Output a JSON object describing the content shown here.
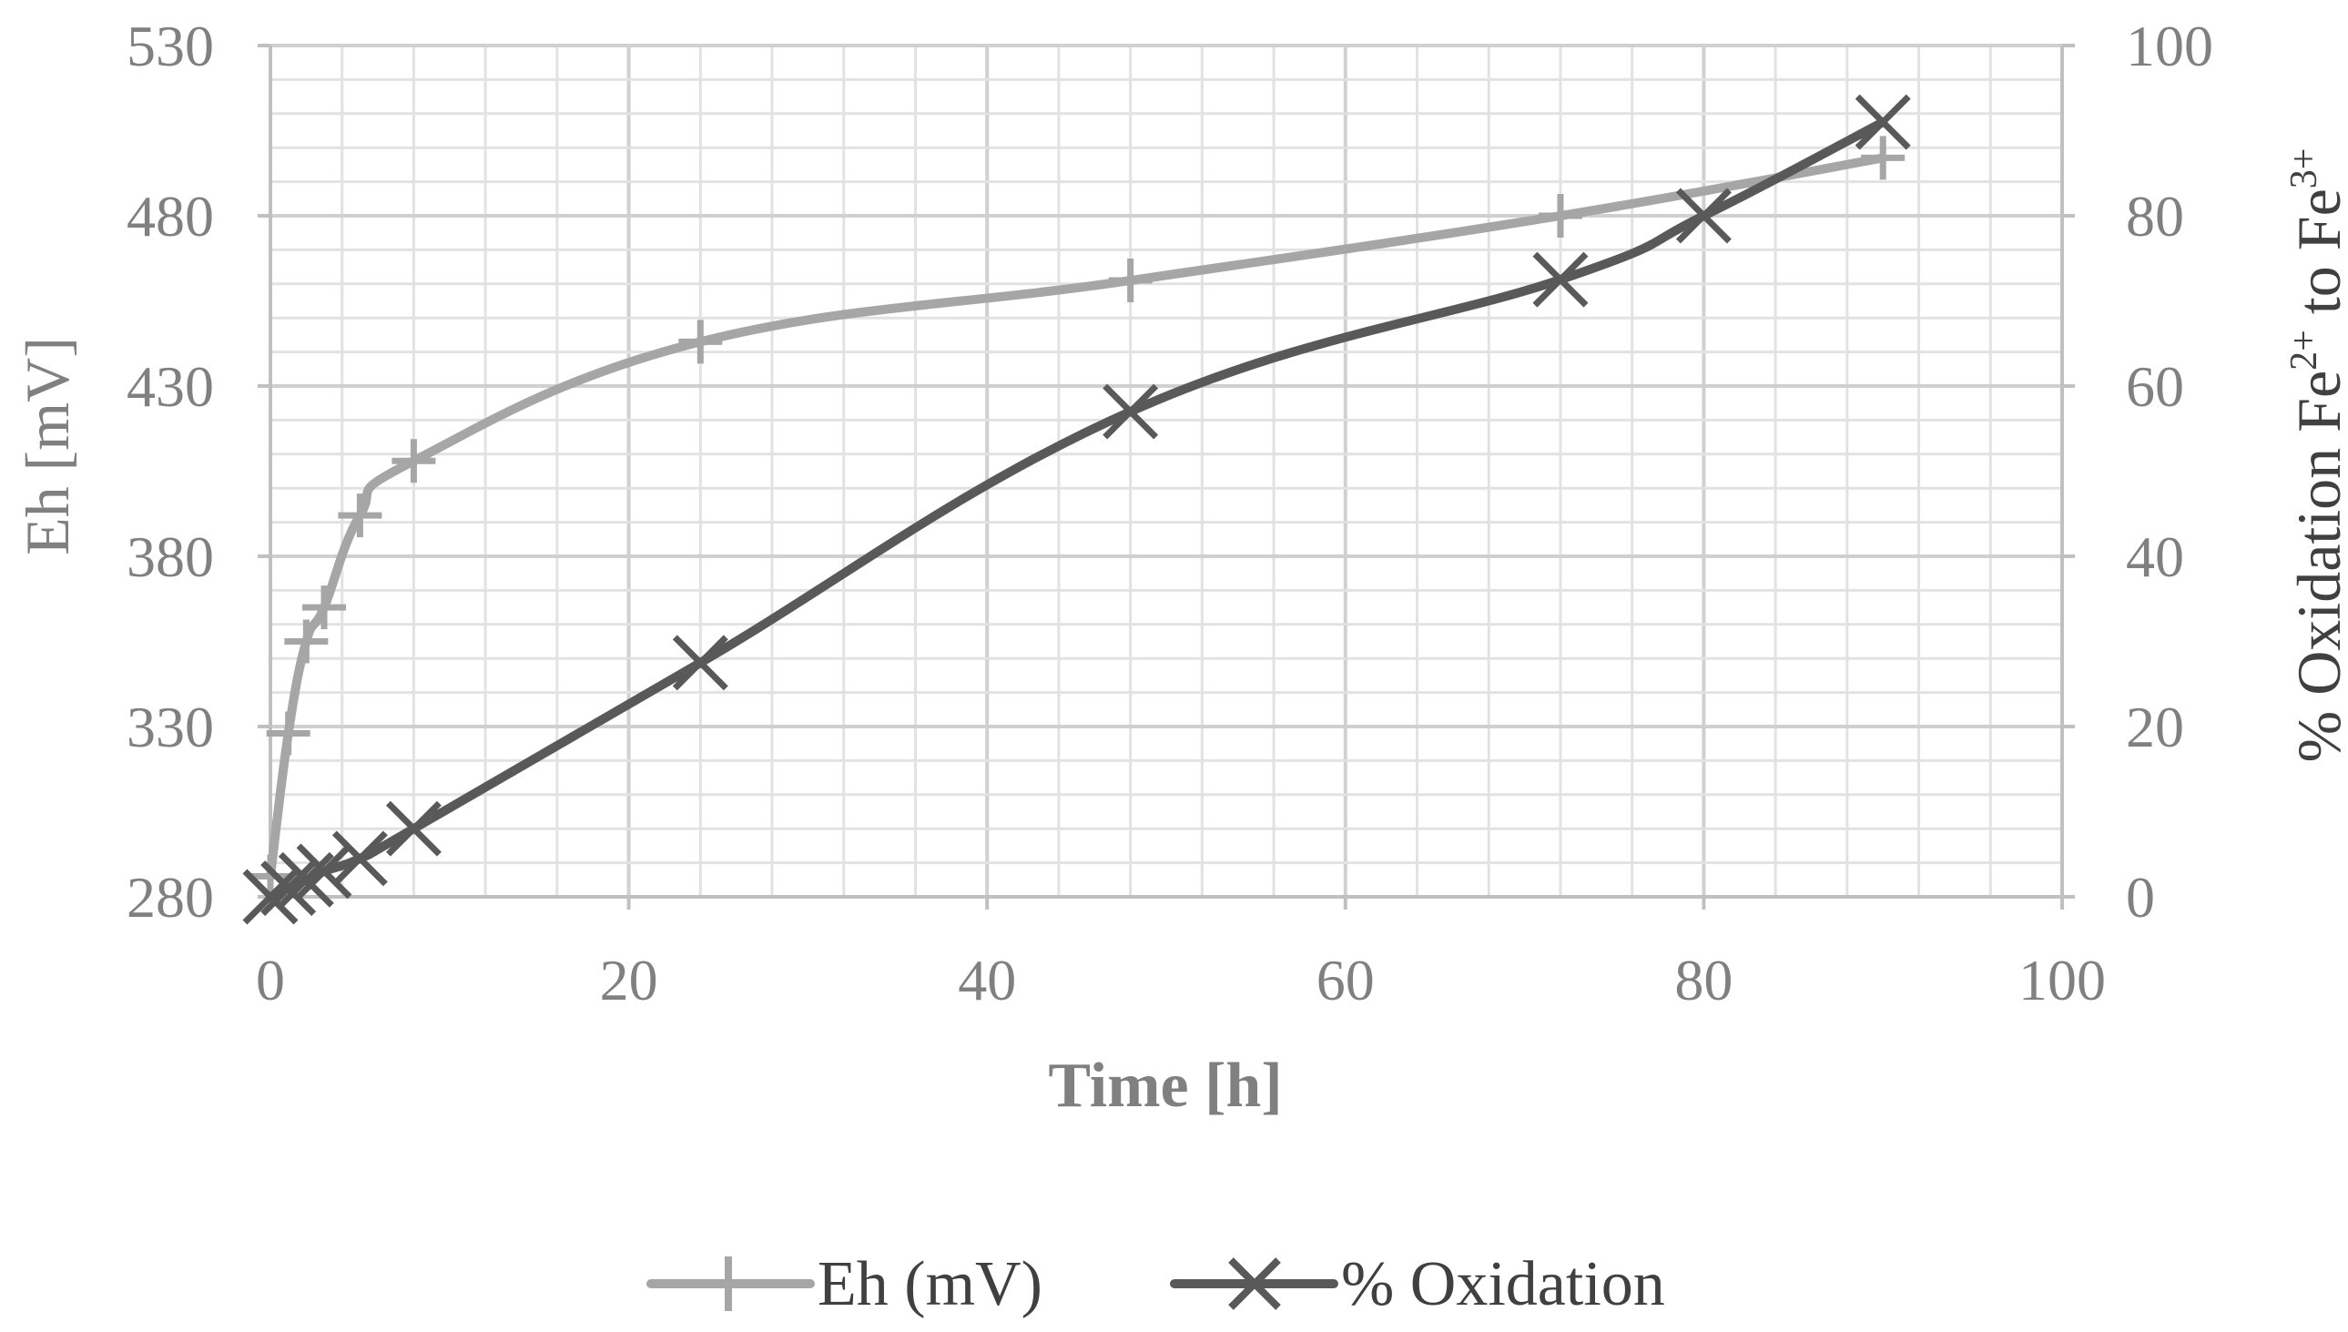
{
  "chart_data": {
    "type": "line",
    "xlabel": "Time [h]",
    "ylabel_left": "Eh [mV]",
    "ylabel_right": {
      "main": "% Oxidation Fe",
      "sup1": "2+",
      "mid": " to Fe",
      "sup2": "3+"
    },
    "xlim": [
      0,
      100
    ],
    "ylim_left": [
      280,
      530
    ],
    "ylim_right": [
      0,
      100
    ],
    "x_ticks": [
      "0",
      "20",
      "40",
      "60",
      "80",
      "100"
    ],
    "y_left_ticks": [
      "280",
      "330",
      "380",
      "430",
      "480",
      "530"
    ],
    "y_right_ticks": [
      "0",
      "20",
      "40",
      "60",
      "80",
      "100"
    ],
    "grid": true,
    "legend_position": "bottom",
    "series": [
      {
        "name": "Eh (mV)",
        "axis": "left",
        "marker": "plus",
        "color": "#a6a6a6",
        "x": [
          0,
          1,
          2,
          3,
          5,
          8,
          24,
          48,
          72,
          90
        ],
        "y": [
          286,
          328,
          355,
          365,
          392,
          408,
          443,
          461,
          480,
          497
        ]
      },
      {
        "name": "% Oxidation",
        "axis": "right",
        "marker": "x",
        "color": "#595959",
        "x": [
          0,
          1,
          2,
          3,
          5,
          8,
          24,
          48,
          72,
          80,
          90
        ],
        "y": [
          0,
          1,
          2,
          3,
          4.5,
          8,
          27.5,
          57,
          72.5,
          80,
          91
        ]
      }
    ]
  }
}
